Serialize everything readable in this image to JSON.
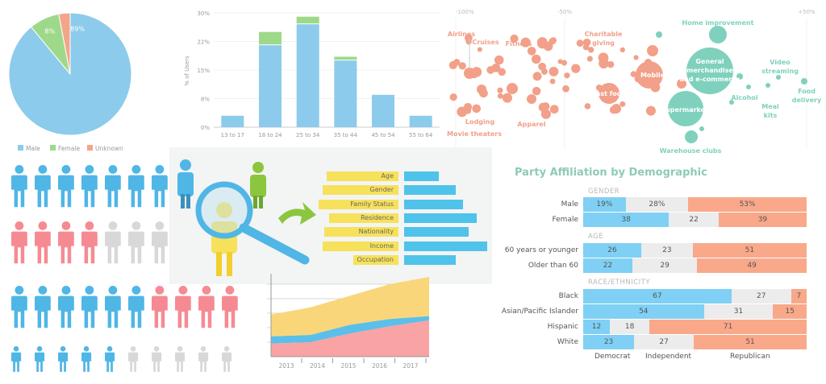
{
  "chart_data": [
    {
      "type": "pie",
      "slices": [
        {
          "name": "Male",
          "value": 89,
          "label": "89%",
          "color": "#8ccbeb"
        },
        {
          "name": "Female",
          "value": 8,
          "label": "8%",
          "color": "#9ed98a"
        },
        {
          "name": "Unknown",
          "value": 3,
          "label": "",
          "color": "#f3a58b"
        }
      ],
      "legend": [
        "Male",
        "Female",
        "Unknown"
      ],
      "legend_placement": "bottom"
    },
    {
      "type": "bar",
      "stacked": true,
      "categories": [
        "13 to 17",
        "18 to 24",
        "25 to 34",
        "35 to 44",
        "45 to 54",
        "55 to 64"
      ],
      "series": [
        {
          "values": [
            3,
            21.5,
            27,
            17.5,
            8.5,
            3
          ],
          "color": "#8ccbeb"
        },
        {
          "values": [
            0,
            3.5,
            2,
            1,
            0,
            0
          ],
          "color": "#9ed98a"
        }
      ],
      "ylabel": "% of Users",
      "yticks": [
        "0%",
        "8%",
        "15%",
        "22%",
        "30%"
      ],
      "ylim": [
        0,
        30
      ],
      "grid": true
    },
    {
      "type": "scatter",
      "subtype": "bubble",
      "xticks": [
        "-100%",
        "-50%",
        "+50%"
      ],
      "labels": {
        "airlines": "Airlines",
        "cruises": "Cruises",
        "fitness": "Fitness",
        "charitable": [
          "Charitable",
          "giving"
        ],
        "home": "Home improvement",
        "general": [
          "General",
          "merchandise",
          "and e-commerce"
        ],
        "mobile": "Mobile",
        "fastfood": "Fast food",
        "supermarkets": "Supermarkets",
        "alcohol": "Alcohol",
        "video": [
          "Video",
          "streaming"
        ],
        "food": [
          "Food",
          "delivery"
        ],
        "meal": [
          "Meal",
          "kits"
        ],
        "lodging": "Lodging",
        "apparel": "Apparel",
        "movie": "Movie theaters",
        "warehouse": "Warehouse clubs"
      },
      "colors": {
        "decline": "#f2a089",
        "growth": "#7fd1bd"
      }
    },
    {
      "type": "area",
      "stacked": true,
      "categories": [
        "2013",
        "2014",
        "2015",
        "2016",
        "2017"
      ],
      "series": [
        {
          "values": [
            0.9,
            1.0,
            1.6,
            2.1,
            2.5
          ],
          "color": "#f9a3a5"
        },
        {
          "values": [
            0.5,
            0.5,
            0.6,
            0.5,
            0.3
          ],
          "color": "#5bbfe9"
        },
        {
          "values": [
            1.5,
            1.9,
            2.0,
            2.4,
            2.7
          ],
          "color": "#fad67a"
        }
      ],
      "grid": true
    },
    {
      "type": "bar",
      "subtype": "horizontal-stacked-100",
      "title": "Party Affiliation by Demographic",
      "legend": [
        "Democrat",
        "Independent",
        "Republican"
      ],
      "colors": [
        "#7fd0f4",
        "#ececec",
        "#f9a88a"
      ],
      "groups": [
        {
          "heading": "GENDER",
          "rows": [
            {
              "label": "Male",
              "values": [
                19,
                28,
                53
              ],
              "texts": [
                "19%",
                "28%",
                "53%"
              ]
            },
            {
              "label": "Female",
              "values": [
                38,
                22,
                39
              ],
              "texts": [
                "38",
                "22",
                "39"
              ]
            }
          ]
        },
        {
          "heading": "AGE",
          "rows": [
            {
              "label": "60 years or younger",
              "values": [
                26,
                23,
                51
              ],
              "texts": [
                "26",
                "23",
                "51"
              ]
            },
            {
              "label": "Older than 60",
              "values": [
                22,
                29,
                49
              ],
              "texts": [
                "22",
                "29",
                "49"
              ]
            }
          ]
        },
        {
          "heading": "RACE/ETHNICITY",
          "rows": [
            {
              "label": "Black",
              "values": [
                67,
                27,
                7
              ],
              "texts": [
                "67",
                "27",
                "7"
              ]
            },
            {
              "label": "Asian/Pacific Islander",
              "values": [
                54,
                31,
                15
              ],
              "texts": [
                "54",
                "31",
                "15"
              ]
            },
            {
              "label": "Hispanic",
              "values": [
                12,
                18,
                71
              ],
              "texts": [
                "12",
                "18",
                "71"
              ]
            },
            {
              "label": "White",
              "values": [
                23,
                27,
                51
              ],
              "texts": [
                "23",
                "27",
                "51"
              ]
            }
          ]
        }
      ]
    },
    {
      "type": "bar",
      "subtype": "attribute-bars",
      "categories": [
        "Age",
        "Gender",
        "Family Status",
        "Residence",
        "Nationality",
        "Income",
        "Occupation"
      ],
      "values": [
        40,
        60,
        68,
        84,
        75,
        96,
        60
      ]
    }
  ],
  "people_rows": [
    {
      "colors": [
        "#4fb6e6",
        "#4fb6e6",
        "#4fb6e6",
        "#4fb6e6",
        "#4fb6e6",
        "#4fb6e6",
        "#4fb6e6",
        "#d8d8d8"
      ]
    },
    {
      "colors": [
        "#f68a93",
        "#f68a93",
        "#f68a93",
        "#f68a93",
        "#d8d8d8",
        "#d8d8d8",
        "#d8d8d8"
      ]
    },
    {
      "colors": [
        "#4fb6e6",
        "#4fb6e6",
        "#4fb6e6",
        "#4fb6e6",
        "#4fb6e6",
        "#4fb6e6",
        "#f68a93",
        "#f68a93",
        "#f68a93",
        "#f68a93"
      ]
    },
    {
      "colors": [
        "#4fb6e6",
        "#4fb6e6",
        "#4fb6e6",
        "#4fb6e6",
        "#4fb6e6",
        "#d8d8d8",
        "#d8d8d8",
        "#d8d8d8",
        "#d8d8d8",
        "#d8d8d8"
      ]
    }
  ]
}
